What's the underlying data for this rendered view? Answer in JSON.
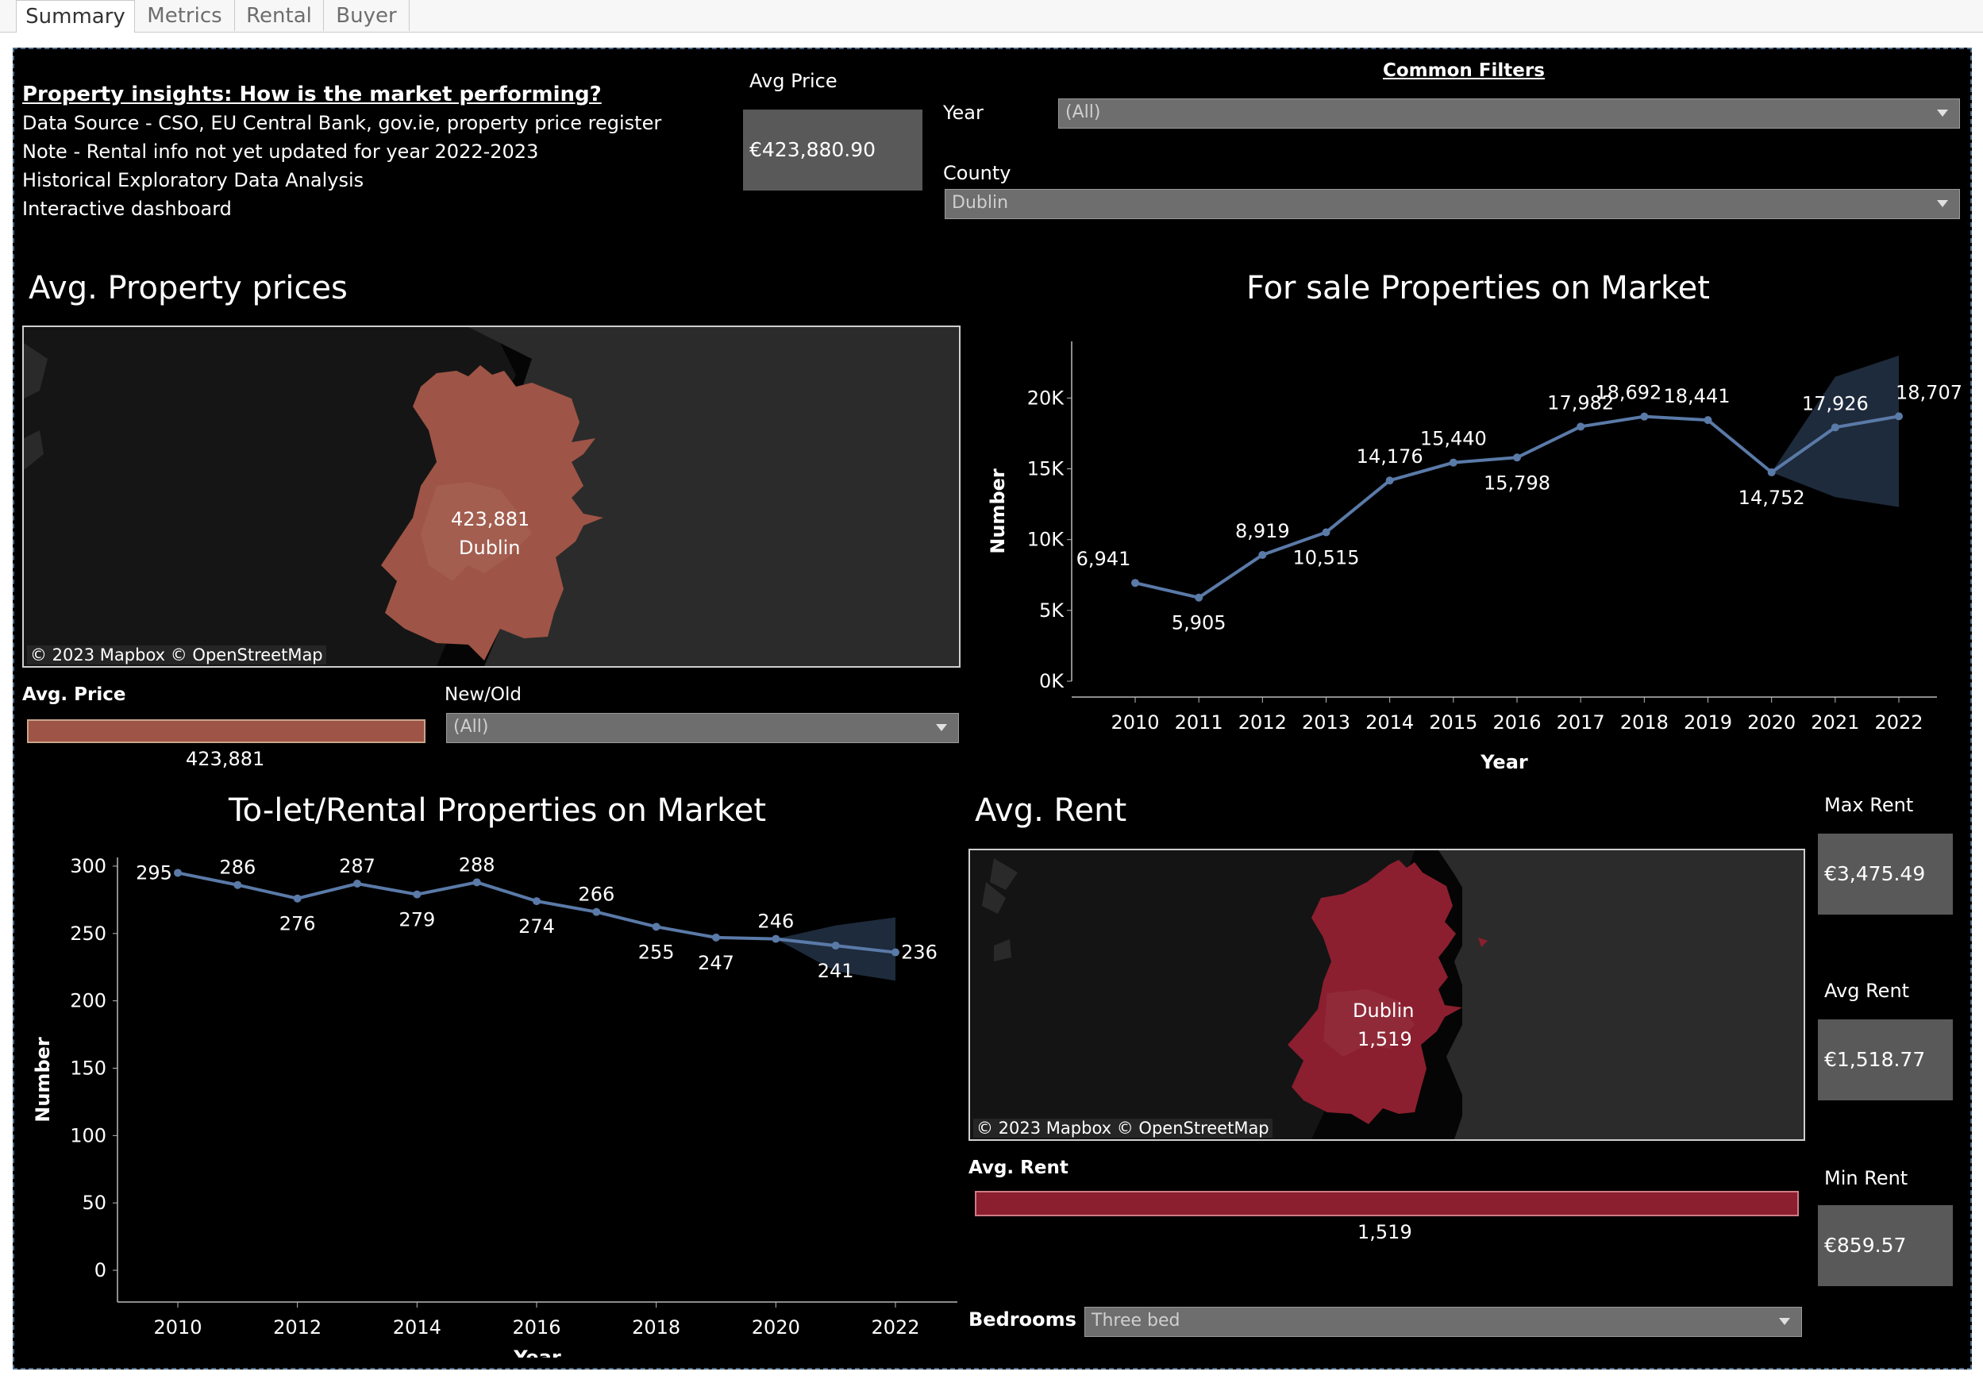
{
  "tabs": [
    {
      "label": "Summary",
      "active": true
    },
    {
      "label": "Metrics",
      "active": false
    },
    {
      "label": "Rental",
      "active": false
    },
    {
      "label": "Buyer",
      "active": false
    }
  ],
  "header": {
    "title": "Property insights: How is the market performing?",
    "lines": [
      "Data Source - CSO, EU Central Bank, gov.ie, property price register",
      "Note - Rental info not yet updated for year 2022-2023",
      "Historical Exploratory Data Analysis",
      "Interactive dashboard"
    ]
  },
  "avg_price_kpi": {
    "label": "Avg Price",
    "value": "€423,880.90"
  },
  "filters": {
    "title": "Common Filters",
    "year": {
      "label": "Year",
      "value": "(All)"
    },
    "county": {
      "label": "County",
      "value": "Dublin"
    },
    "new_old": {
      "label": "New/Old",
      "value": "(All)"
    },
    "bedrooms": {
      "label": "Bedrooms",
      "value": "Three bed"
    }
  },
  "price_map": {
    "title": "Avg. Property prices",
    "value_label": "423,881",
    "county_label": "Dublin",
    "attribution": "© 2023 Mapbox  © OpenStreetMap",
    "fill_color": "#9e5446"
  },
  "price_legend": {
    "label": "Avg. Price",
    "value": "423,881",
    "color": "#9e5446"
  },
  "rent_map": {
    "title": "Avg. Rent",
    "county_label": "Dublin",
    "value_label": "1,519",
    "attribution": "© 2023 Mapbox  © OpenStreetMap",
    "fill_color": "#8b1f2f"
  },
  "rent_legend": {
    "label": "Avg. Rent",
    "value": "1,519",
    "color": "#8b1f2f"
  },
  "rent_kpis": {
    "max": {
      "label": "Max Rent",
      "value": "€3,475.49"
    },
    "avg": {
      "label": "Avg Rent",
      "value": "€1,518.77"
    },
    "min": {
      "label": "Min Rent",
      "value": "€859.57"
    }
  },
  "chart_data": [
    {
      "type": "line",
      "title": "For sale Properties on Market",
      "xlabel": "Year",
      "ylabel": "Number",
      "x": [
        2010,
        2011,
        2012,
        2013,
        2014,
        2015,
        2016,
        2017,
        2018,
        2019,
        2020,
        2021,
        2022
      ],
      "values": [
        6941,
        5905,
        8919,
        10515,
        14176,
        15440,
        15798,
        17982,
        18692,
        18441,
        14752,
        17926,
        18707
      ],
      "data_labels": [
        "6,941",
        "5,905",
        "8,919",
        "10,515",
        "14,176",
        "15,440",
        "15,798",
        "17,982",
        "18,692",
        "18,441",
        "14,752",
        "17,926",
        "18,707"
      ],
      "yticks": [
        0,
        5000,
        10000,
        15000,
        20000
      ],
      "ytick_labels": [
        "0K",
        "5K",
        "10K",
        "15K",
        "20K"
      ],
      "ylim": [
        0,
        24000
      ],
      "forecast_band": {
        "x": [
          2020,
          2021,
          2022
        ],
        "lower": [
          14752,
          13000,
          12300
        ],
        "upper": [
          14752,
          21500,
          23000
        ]
      },
      "line_color": "#5a7aa8",
      "grid": false
    },
    {
      "type": "line",
      "title": "To-let/Rental Properties on Market",
      "xlabel": "Year",
      "ylabel": "Number",
      "x": [
        2010,
        2011,
        2012,
        2013,
        2014,
        2015,
        2016,
        2017,
        2018,
        2019,
        2020,
        2021,
        2022
      ],
      "values": [
        295,
        286,
        276,
        287,
        279,
        288,
        274,
        266,
        255,
        247,
        246,
        241,
        236
      ],
      "data_labels": [
        "295",
        "286",
        "276",
        "287",
        "279",
        "288",
        "274",
        "266",
        "255",
        "247",
        "246",
        "241",
        "236"
      ],
      "xticks": [
        2010,
        2012,
        2014,
        2016,
        2018,
        2020,
        2022
      ],
      "yticks": [
        0,
        50,
        100,
        150,
        200,
        250,
        300
      ],
      "ylim": [
        0,
        310
      ],
      "forecast_band": {
        "x": [
          2020,
          2021,
          2022
        ],
        "lower": [
          246,
          222,
          215
        ],
        "upper": [
          246,
          256,
          262
        ]
      },
      "line_color": "#5a7aa8",
      "grid": false
    }
  ]
}
